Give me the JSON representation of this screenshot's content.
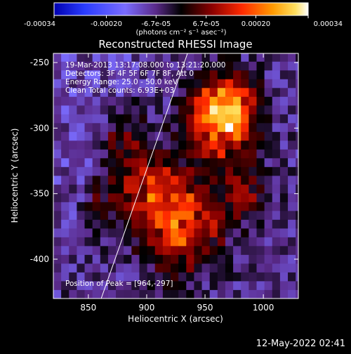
{
  "chart_data": {
    "type": "heatmap",
    "title": "Reconstructed RHESSI Image",
    "xlabel": "Heliocentric X (arcsec)",
    "ylabel": "Heliocentric Y (arcsec)",
    "xlim": [
      820,
      1030
    ],
    "ylim": [
      -430,
      -243
    ],
    "xticks": [
      "850",
      "900",
      "950",
      "1000"
    ],
    "xtick_values": [
      850,
      900,
      950,
      1000
    ],
    "yticks": [
      "-250",
      "-300",
      "-350",
      "-400"
    ],
    "ytick_values": [
      -250,
      -300,
      -350,
      -400
    ],
    "colorbar": {
      "ticks": [
        "-0.00034",
        "-0.00020",
        "-6.7e-05",
        "6.7e-05",
        "0.00020",
        "0.00034"
      ],
      "tick_values": [
        -0.00034,
        -0.0002,
        -6.7e-05,
        6.7e-05,
        0.0002,
        0.00034
      ],
      "range": [
        -0.00034,
        0.00034
      ],
      "units": "(photons cm⁻² s⁻¹ asec⁻²)",
      "colormap": "rainbow-to-hot"
    },
    "annotations": {
      "time_range": "19-Mar-2013 13:17:08.000 to 13:21:20.000",
      "detectors": "Detectors: 3F 4F 5F 6F 7F 8F, Att 0",
      "energy": "Energy Range: 25.0 - 50.0 keV",
      "clean": "Clean    Total counts: 6.93E+03",
      "peak": "Position of Peak = [964,-297]"
    },
    "peak_position": [
      964,
      -297
    ],
    "limb_line": {
      "from": [
        861,
        -430
      ],
      "to": [
        935,
        -243
      ]
    },
    "grid": false
  },
  "footer": {
    "date": "12-May-2022 02:41"
  }
}
